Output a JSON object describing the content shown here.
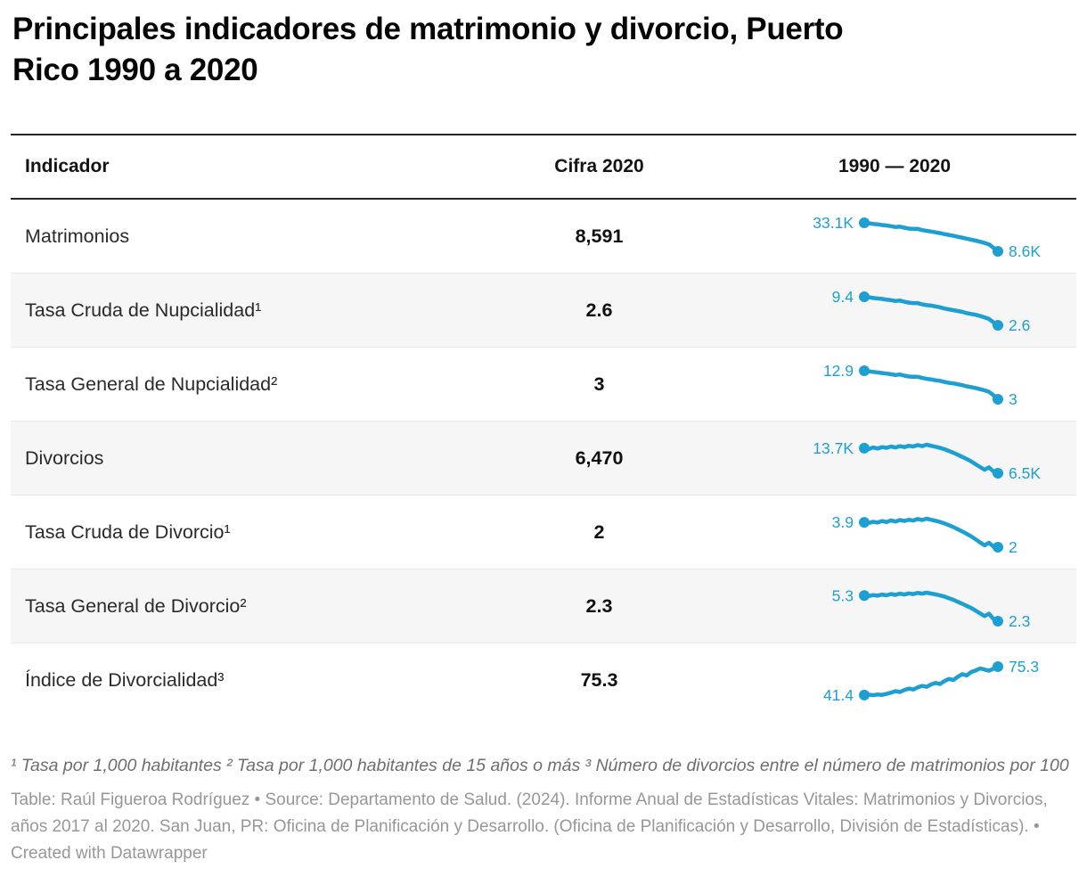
{
  "title": {
    "line1": "Principales indicadores de matrimonio y divorcio, Puerto",
    "line2": "Rico 1990 a 2020"
  },
  "colors": {
    "accent": "#1E9FD2",
    "header_border": "#252525",
    "row_alt_bg": "#f6f6f6",
    "row_divider": "#e7e7e7"
  },
  "notes": "¹ Tasa por 1,000 habitantes ² Tasa por 1,000 habitantes de 15 años o más ³ Número de divorcios entre el número de matrimonios por 100",
  "source": "Table: Raúl Figueroa Rodríguez • Source: Departamento de Salud. (2024). Informe Anual de Estadísticas Vitales: Matrimonios y Divorcios, años 2017 al 2020. San Juan, PR: Oficina de Planificación y Desarrollo. (Oficina de Planificación y Desarrollo, División de Estadísticas). • Created with Datawrapper",
  "chart_data": {
    "type": "table",
    "title": "Principales indicadores de matrimonio y divorcio, Puerto Rico 1990 a 2020",
    "columns": [
      "Indicador",
      "Cifra 2020",
      "1990 — 2020"
    ],
    "sparkline_type": "line",
    "sparkline_x_range": [
      1990,
      2020
    ],
    "legend": "none",
    "rows": [
      {
        "indicador": "Matrimonios",
        "cifra_2020": "8,591",
        "spark_start_label": "33.1K",
        "spark_end_label": "8.6K",
        "spark_values": [
          33.1,
          32.7,
          32.2,
          31.8,
          31.2,
          30.8,
          30.2,
          29.5,
          29.8,
          28.9,
          28.1,
          27.8,
          27.9,
          26.8,
          26.2,
          25.6,
          24.9,
          24.2,
          23.4,
          22.7,
          21.9,
          21.1,
          20.3,
          19.5,
          18.6,
          17.8,
          16.9,
          15.8,
          14.6,
          11.7,
          8.6
        ]
      },
      {
        "indicador": "Tasa Cruda de Nupcialidad¹",
        "cifra_2020": "2.6",
        "spark_start_label": "9.4",
        "spark_end_label": "2.6",
        "spark_values": [
          9.4,
          9.3,
          9.1,
          9.0,
          8.9,
          8.7,
          8.6,
          8.4,
          8.5,
          8.2,
          8.0,
          7.9,
          7.9,
          7.6,
          7.4,
          7.3,
          7.1,
          6.9,
          6.6,
          6.4,
          6.2,
          6.0,
          5.8,
          5.5,
          5.3,
          5.1,
          4.8,
          4.5,
          4.1,
          3.3,
          2.6
        ]
      },
      {
        "indicador": "Tasa General de Nupcialidad²",
        "cifra_2020": "3",
        "spark_start_label": "12.9",
        "spark_end_label": "3",
        "spark_values": [
          12.9,
          12.7,
          12.5,
          12.3,
          12.1,
          11.9,
          11.7,
          11.4,
          11.6,
          11.2,
          10.9,
          10.8,
          10.8,
          10.4,
          10.1,
          9.9,
          9.6,
          9.4,
          9.0,
          8.7,
          8.5,
          8.2,
          7.9,
          7.5,
          7.2,
          6.9,
          6.5,
          6.1,
          5.6,
          4.4,
          3.0
        ]
      },
      {
        "indicador": "Divorcios",
        "cifra_2020": "6,470",
        "spark_start_label": "13.7K",
        "spark_end_label": "6.5K",
        "spark_values": [
          13.7,
          13.5,
          13.9,
          13.6,
          14.0,
          13.8,
          14.2,
          13.9,
          14.3,
          14.0,
          14.4,
          14.2,
          14.6,
          14.3,
          14.7,
          14.4,
          14.1,
          13.8,
          13.4,
          12.9,
          12.4,
          11.8,
          11.2,
          10.6,
          9.9,
          9.1,
          8.3,
          7.5,
          8.2,
          7.0,
          6.5
        ]
      },
      {
        "indicador": "Tasa Cruda de Divorcio¹",
        "cifra_2020": "2",
        "spark_start_label": "3.9",
        "spark_end_label": "2",
        "spark_values": [
          3.9,
          3.85,
          3.95,
          3.88,
          4.0,
          3.92,
          4.05,
          3.96,
          4.08,
          4.0,
          4.1,
          4.04,
          4.16,
          4.08,
          4.18,
          4.1,
          4.02,
          3.93,
          3.82,
          3.68,
          3.54,
          3.37,
          3.2,
          3.02,
          2.83,
          2.6,
          2.37,
          2.14,
          2.34,
          2.05,
          2.0
        ]
      },
      {
        "indicador": "Tasa General de Divorcio²",
        "cifra_2020": "2.3",
        "spark_start_label": "5.3",
        "spark_end_label": "2.3",
        "spark_values": [
          5.3,
          5.24,
          5.36,
          5.28,
          5.42,
          5.33,
          5.48,
          5.38,
          5.52,
          5.42,
          5.56,
          5.47,
          5.62,
          5.52,
          5.64,
          5.54,
          5.44,
          5.32,
          5.18,
          4.99,
          4.8,
          4.57,
          4.34,
          4.1,
          3.84,
          3.53,
          3.22,
          2.9,
          3.18,
          2.55,
          2.3
        ]
      },
      {
        "indicador": "Índice de Divorcialidad³",
        "cifra_2020": "75.3",
        "spark_start_label": "41.4",
        "spark_end_label": "75.3",
        "spark_values": [
          41.4,
          41.8,
          41.3,
          42.0,
          41.6,
          42.8,
          44.3,
          46.1,
          45.0,
          47.4,
          49.2,
          48.0,
          50.6,
          52.4,
          51.2,
          54.0,
          55.9,
          54.6,
          58.1,
          60.6,
          59.4,
          63.2,
          66.4,
          64.9,
          68.8,
          70.7,
          73.2,
          71.8,
          70.4,
          72.9,
          75.3
        ]
      }
    ]
  }
}
